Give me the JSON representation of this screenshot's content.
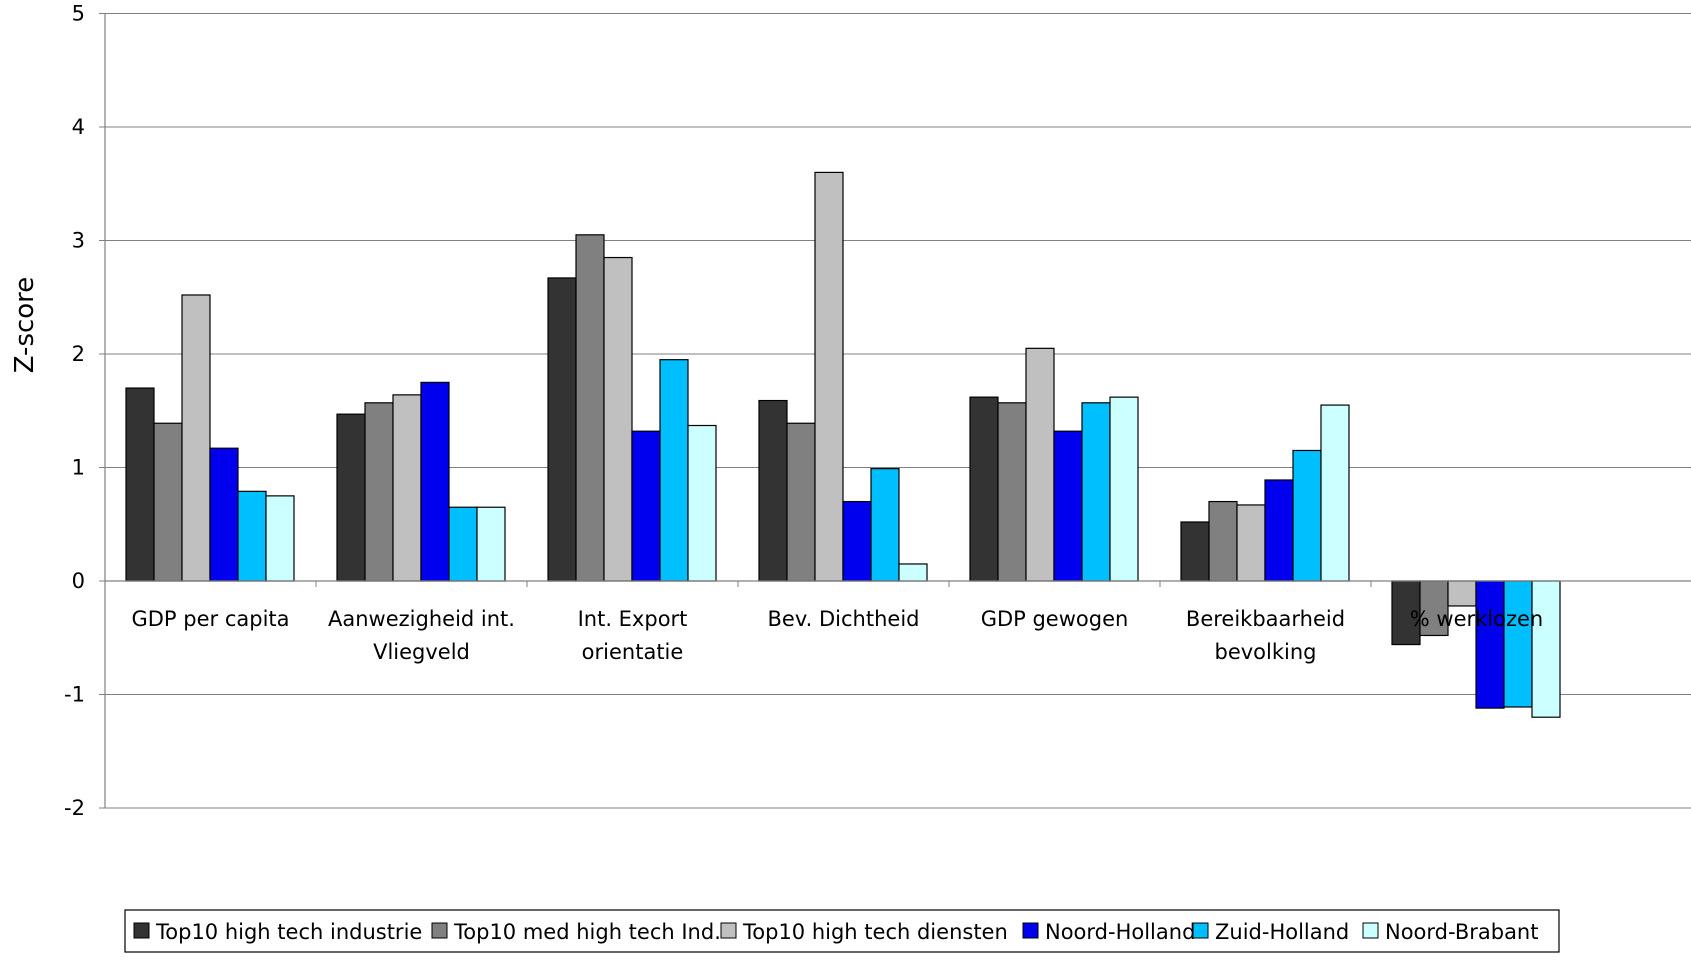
{
  "chart_data": {
    "type": "bar",
    "title": "",
    "xlabel": "",
    "ylabel": "Z-score",
    "ylim": [
      -2,
      5
    ],
    "yticks": [
      -2,
      -1,
      0,
      1,
      2,
      3,
      4,
      5
    ],
    "grid": true,
    "legend_position": "bottom",
    "categories": [
      [
        "GDP per capita"
      ],
      [
        "Aanwezigheid int.",
        "Vliegveld"
      ],
      [
        "Int. Export",
        "orientatie"
      ],
      [
        "Bev. Dichtheid"
      ],
      [
        "GDP gewogen"
      ],
      [
        "Bereikbaarheid",
        "bevolking"
      ],
      [
        "% werklozen"
      ]
    ],
    "series": [
      {
        "name": "Top10 high tech industrie",
        "color": "#333333",
        "values": [
          1.7,
          1.47,
          2.67,
          1.59,
          1.62,
          0.52,
          -0.56
        ]
      },
      {
        "name": "Top10 med high tech Ind.",
        "color": "#808080",
        "values": [
          1.39,
          1.57,
          3.05,
          1.39,
          1.57,
          0.7,
          -0.48
        ]
      },
      {
        "name": "Top10 high tech diensten",
        "color": "#c0c0c0",
        "values": [
          2.52,
          1.64,
          2.85,
          3.6,
          2.05,
          0.67,
          -0.22
        ]
      },
      {
        "name": "Noord-Holland",
        "color": "#0000ee",
        "values": [
          1.17,
          1.75,
          1.32,
          0.7,
          1.32,
          0.89,
          -1.12
        ]
      },
      {
        "name": "Zuid-Holland",
        "color": "#00bfff",
        "values": [
          0.79,
          0.65,
          1.95,
          0.99,
          1.57,
          1.15,
          -1.11
        ]
      },
      {
        "name": "Noord-Brabant",
        "color": "#ccffff",
        "values": [
          0.75,
          0.65,
          1.37,
          0.15,
          1.62,
          1.55,
          -1.2
        ]
      }
    ]
  }
}
